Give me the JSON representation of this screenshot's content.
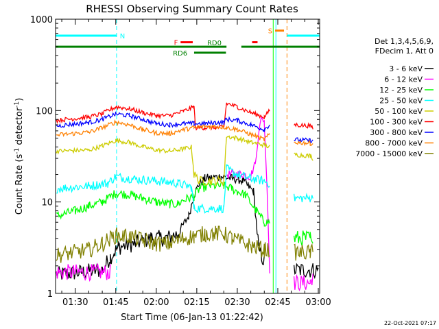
{
  "chart_data": {
    "type": "line",
    "title": "RHESSI Observing Summary Count Rates",
    "xlabel": "Start Time (06-Jan-13 01:22:42)",
    "ylabel_main": "Count Rate (s",
    "ylabel_sup1": "-1",
    "ylabel_mid": " detector",
    "ylabel_sup2": "-1",
    "ylabel_end": ")",
    "footer": "22-Oct-2021 07:17",
    "y_scale": "log",
    "ylim": [
      1,
      1000
    ],
    "xlim_minutes": [
      82.7,
      180.5
    ],
    "yticks": [
      {
        "value": 1,
        "label": "1"
      },
      {
        "value": 10,
        "label": "10"
      },
      {
        "value": 100,
        "label": "100"
      },
      {
        "value": 1000,
        "label": "1000"
      }
    ],
    "xticks": [
      {
        "minute": 90,
        "label": "01:30"
      },
      {
        "minute": 105,
        "label": "01:45"
      },
      {
        "minute": 120,
        "label": "02:00"
      },
      {
        "minute": 135,
        "label": "02:15"
      },
      {
        "minute": 150,
        "label": "02:30"
      },
      {
        "minute": 165,
        "label": "02:45"
      },
      {
        "minute": 180,
        "label": "03:00"
      }
    ],
    "legend": {
      "placement": "right",
      "header_line1": "Det 1,3,4,5,6,9,",
      "header_line2": "FDecim 1, Att 0"
    },
    "series": [
      {
        "name": "3 - 6 keV",
        "color": "#000000",
        "segments": [
          [
            [
              83,
              1.6
            ],
            [
              100,
              1.8
            ],
            [
              103,
              2.5
            ],
            [
              106,
              3.2
            ],
            [
              112,
              3.5
            ],
            [
              118,
              4.0
            ],
            [
              124,
              4.0
            ],
            [
              128,
              4.5
            ],
            [
              132,
              7
            ],
            [
              134,
              12
            ],
            [
              136,
              16
            ],
            [
              138,
              18
            ],
            [
              144,
              19
            ],
            [
              148,
              18
            ],
            [
              150,
              18
            ],
            [
              152,
              17
            ],
            [
              154,
              15
            ],
            [
              156,
              13
            ],
            [
              158,
              3
            ],
            [
              160,
              2.2
            ]
          ],
          [
            [
              171,
              1.8
            ],
            [
              180,
              1.8
            ]
          ]
        ]
      },
      {
        "name": "6 - 12 keV",
        "color": "#ff00ff",
        "segments": [
          [
            [
              83,
              1.7
            ],
            [
              103,
              1.7
            ]
          ],
          [
            [
              146,
              20
            ],
            [
              150,
              20
            ],
            [
              152,
              20
            ],
            [
              155,
              19
            ],
            [
              157,
              30
            ],
            [
              158,
              60
            ],
            [
              159,
              85
            ],
            [
              160,
              75
            ],
            [
              161,
              15
            ],
            [
              162,
              2
            ]
          ],
          [
            [
              171,
              1.3
            ],
            [
              177,
              1.3
            ],
            [
              178,
              1.6
            ]
          ]
        ]
      },
      {
        "name": "12 - 25 keV",
        "color": "#00ff00",
        "segments": [
          [
            [
              83,
              7.0
            ],
            [
              90,
              8.0
            ],
            [
              95,
              9.0
            ],
            [
              100,
              10.0
            ],
            [
              105,
              12.5
            ],
            [
              110,
              12.0
            ],
            [
              115,
              11.0
            ],
            [
              120,
              10.0
            ],
            [
              125,
              9.5
            ],
            [
              128,
              9.5
            ],
            [
              130,
              10.5
            ],
            [
              134,
              11.5
            ],
            [
              136,
              14
            ],
            [
              140,
              15
            ],
            [
              145,
              15
            ],
            [
              148,
              14
            ],
            [
              150,
              13
            ],
            [
              153,
              12
            ],
            [
              157,
              8
            ],
            [
              160,
              6
            ],
            [
              162,
              6
            ]
          ],
          [
            [
              171,
              4
            ],
            [
              177,
              4
            ],
            [
              178,
              3
            ]
          ]
        ]
      },
      {
        "name": "25 - 50 keV",
        "color": "#00ffff",
        "segments": [
          [
            [
              83,
              14
            ],
            [
              95,
              15
            ],
            [
              102,
              16
            ],
            [
              105,
              19
            ],
            [
              110,
              18
            ],
            [
              120,
              17
            ],
            [
              128,
              16
            ],
            [
              133,
              14.5
            ],
            [
              134,
              8.5
            ],
            [
              140,
              8.5
            ],
            [
              145,
              8.5
            ],
            [
              146,
              23
            ],
            [
              150,
              20
            ],
            [
              155,
              18
            ],
            [
              160,
              17
            ],
            [
              162,
              16
            ]
          ],
          [
            [
              171,
              11
            ],
            [
              177,
              11
            ],
            [
              178,
              11
            ]
          ]
        ]
      },
      {
        "name": "50 - 100 keV",
        "color": "#cccc00",
        "segments": [
          [
            [
              83,
              36
            ],
            [
              95,
              37
            ],
            [
              100,
              41
            ],
            [
              105,
              47
            ],
            [
              110,
              45
            ],
            [
              115,
              40
            ],
            [
              120,
              37
            ],
            [
              125,
              36
            ],
            [
              130,
              38
            ],
            [
              133,
              40
            ],
            [
              134,
              20
            ],
            [
              136,
              17
            ],
            [
              140,
              17
            ],
            [
              145,
              17
            ],
            [
              146,
              52
            ],
            [
              150,
              50
            ],
            [
              155,
              45
            ],
            [
              160,
              42
            ],
            [
              162,
              40
            ]
          ],
          [
            [
              171,
              33
            ],
            [
              177,
              32
            ],
            [
              178,
              30
            ]
          ]
        ]
      },
      {
        "name": "100 - 300 keV",
        "color": "#ff0000",
        "segments": [
          [
            [
              83,
              78
            ],
            [
              95,
              85
            ],
            [
              100,
              92
            ],
            [
              105,
              110
            ],
            [
              110,
              105
            ],
            [
              115,
              95
            ],
            [
              120,
              88
            ],
            [
              125,
              88
            ],
            [
              130,
              98
            ],
            [
              134,
              110
            ],
            [
              134.5,
              65
            ],
            [
              138,
              65
            ],
            [
              142,
              65
            ],
            [
              145,
              65
            ],
            [
              146,
              120
            ],
            [
              150,
              110
            ],
            [
              155,
              95
            ],
            [
              160,
              85
            ],
            [
              162,
              100
            ]
          ],
          [
            [
              171,
              70
            ],
            [
              177,
              68
            ],
            [
              178,
              65
            ]
          ]
        ]
      },
      {
        "name": "300 - 800 keV",
        "color": "#0000ff",
        "segments": [
          [
            [
              83,
              68
            ],
            [
              95,
              74
            ],
            [
              100,
              80
            ],
            [
              105,
              92
            ],
            [
              110,
              88
            ],
            [
              115,
              80
            ],
            [
              120,
              72
            ],
            [
              125,
              70
            ],
            [
              130,
              72
            ],
            [
              134,
              72
            ],
            [
              138,
              72
            ],
            [
              142,
              74
            ],
            [
              145,
              74
            ],
            [
              146,
              80
            ],
            [
              150,
              78
            ],
            [
              155,
              70
            ],
            [
              160,
              62
            ],
            [
              162,
              70
            ]
          ],
          [
            [
              171,
              48
            ],
            [
              177,
              47
            ],
            [
              178,
              46
            ]
          ]
        ]
      },
      {
        "name": "800 - 7000 keV",
        "color": "#ff8000",
        "segments": [
          [
            [
              83,
              54
            ],
            [
              95,
              58
            ],
            [
              100,
              65
            ],
            [
              105,
              75
            ],
            [
              110,
              70
            ],
            [
              115,
              62
            ],
            [
              120,
              57
            ],
            [
              125,
              56
            ],
            [
              130,
              62
            ],
            [
              134,
              65
            ],
            [
              138,
              67
            ],
            [
              142,
              67
            ],
            [
              145,
              66
            ],
            [
              146,
              65
            ],
            [
              150,
              62
            ],
            [
              155,
              55
            ],
            [
              160,
              48
            ],
            [
              162,
              55
            ]
          ],
          [
            [
              171,
              45
            ],
            [
              177,
              44
            ],
            [
              178,
              43
            ]
          ]
        ]
      },
      {
        "name": "7000 - 15000 keV",
        "color": "#808000",
        "segments": [
          [
            [
              83,
              2.6
            ],
            [
              95,
              3.0
            ],
            [
              100,
              3.5
            ],
            [
              105,
              4.3
            ],
            [
              110,
              4.2
            ],
            [
              115,
              3.8
            ],
            [
              120,
              3.5
            ],
            [
              125,
              3.5
            ],
            [
              130,
              4.0
            ],
            [
              134,
              4.2
            ],
            [
              138,
              4.5
            ],
            [
              142,
              4.5
            ],
            [
              145,
              4.5
            ],
            [
              148,
              4.0
            ],
            [
              155,
              3.3
            ],
            [
              160,
              3.0
            ],
            [
              162,
              3.0
            ]
          ],
          [
            [
              171,
              2.8
            ],
            [
              177,
              2.8
            ],
            [
              178,
              2.8
            ]
          ]
        ]
      }
    ],
    "flag_bars": [
      {
        "label": "N",
        "color": "#00ffff",
        "level": 660,
        "start": 82.7,
        "end": 105.3,
        "label_minute": 106.5,
        "label_side": "right"
      },
      {
        "label": "N",
        "color": "#00ffff",
        "level": 660,
        "start": 168.4,
        "end": 180.5,
        "label_minute": null,
        "label_side": "none"
      },
      {
        "label": "F",
        "color": "#ff0000",
        "level": 560,
        "start": 129.0,
        "end": 133.5,
        "label_minute": 128.0,
        "label_side": "left"
      },
      {
        "label": "",
        "color": "#ff0000",
        "level": 560,
        "start": 155.5,
        "end": 157.5,
        "label_minute": null,
        "label_side": "none"
      },
      {
        "label": "S",
        "color": "#ff8000",
        "level": 750,
        "start": 164.0,
        "end": 167.3,
        "label_minute": 163.0,
        "label_side": "left"
      },
      {
        "label": "RD0",
        "color": "#008000",
        "level": 500,
        "start": 82.7,
        "end": 146.0,
        "label_minute": 141.5,
        "label_side": "above"
      },
      {
        "label": "",
        "color": "#008000",
        "level": 500,
        "start": 151.5,
        "end": 180.5,
        "label_minute": null,
        "label_side": "none"
      },
      {
        "label": "RD6",
        "color": "#008000",
        "level": 430,
        "start": 134.0,
        "end": 145.8,
        "label_minute": 131.5,
        "label_side": "left"
      }
    ],
    "vlines": [
      {
        "minute": 105.3,
        "color": "#00ffff",
        "style": "dashed"
      },
      {
        "minute": 180.5,
        "color": "#00ffff",
        "style": "dashed"
      },
      {
        "minute": 163.3,
        "color": "#00ff00",
        "style": "solid"
      },
      {
        "minute": 164.3,
        "color": "#00ffff",
        "style": "solid"
      },
      {
        "minute": 168.4,
        "color": "#ff8000",
        "style": "dashed"
      }
    ]
  }
}
